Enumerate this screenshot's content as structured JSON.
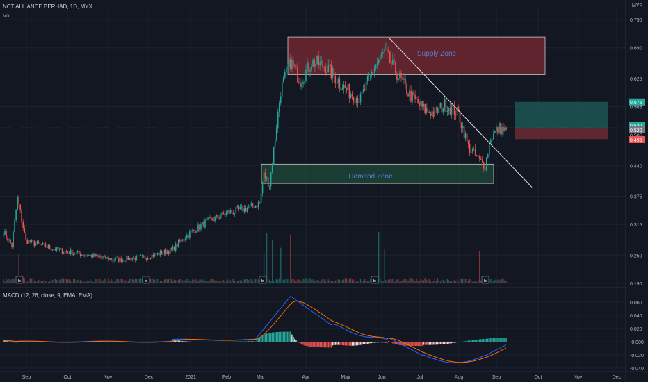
{
  "header": {
    "symbol_line": "NCT ALLIANCE BERHAD, 1D, MYX",
    "vol_label": "Vol",
    "currency": "MYR",
    "macd_label": "MACD (12, 26, close, 9, EMA, EMA)"
  },
  "colors": {
    "background": "#131722",
    "up": "#26a69a",
    "down": "#ef5350",
    "macd_line": "#2962ff",
    "signal_line": "#ff6d00",
    "supply_zone": "#7a2a33",
    "demand_zone": "#1f4a3a",
    "text": "#b2b5be"
  },
  "annotations": {
    "supply_zone": "Supply Zone",
    "demand_zone": "Demand Zone",
    "earnings_marker": "E"
  },
  "price_badges": [
    {
      "value": "0.575",
      "color": "#26a69a"
    },
    {
      "value": "0.520",
      "color": "#26a69a"
    },
    {
      "value": "0.520",
      "color": "#787b86"
    },
    {
      "value": "0.495",
      "color": "#ef5350"
    }
  ],
  "chart_data": [
    {
      "type": "candlestick",
      "title": "NCT ALLIANCE BERHAD, 1D, MYX",
      "y_ticks": [
        "0.750",
        "0.690",
        "0.625",
        "0.565",
        "0.505",
        "0.440",
        "0.375",
        "0.315",
        "0.250",
        "0.190"
      ],
      "ylim": [
        0.19,
        0.76
      ],
      "x_ticks": [
        "Sep",
        "Oct",
        "Nov",
        "Dec",
        "2021",
        "Feb",
        "Mar",
        "Apr",
        "May",
        "Jun",
        "Jul",
        "Aug",
        "Sep",
        "Oct",
        "Nov",
        "Dec"
      ],
      "anchors": [
        {
          "t": 0,
          "p": 0.3
        },
        {
          "t": 6,
          "p": 0.27
        },
        {
          "t": 10,
          "p": 0.37
        },
        {
          "t": 16,
          "p": 0.28
        },
        {
          "t": 40,
          "p": 0.26
        },
        {
          "t": 60,
          "p": 0.25
        },
        {
          "t": 80,
          "p": 0.24
        },
        {
          "t": 100,
          "p": 0.245
        },
        {
          "t": 120,
          "p": 0.26
        },
        {
          "t": 130,
          "p": 0.29
        },
        {
          "t": 145,
          "p": 0.32
        },
        {
          "t": 160,
          "p": 0.34
        },
        {
          "t": 175,
          "p": 0.35
        },
        {
          "t": 183,
          "p": 0.36
        },
        {
          "t": 186,
          "p": 0.42
        },
        {
          "t": 190,
          "p": 0.4
        },
        {
          "t": 198,
          "p": 0.6
        },
        {
          "t": 205,
          "p": 0.66
        },
        {
          "t": 212,
          "p": 0.62
        },
        {
          "t": 220,
          "p": 0.66
        },
        {
          "t": 230,
          "p": 0.65
        },
        {
          "t": 245,
          "p": 0.6
        },
        {
          "t": 255,
          "p": 0.58
        },
        {
          "t": 265,
          "p": 0.65
        },
        {
          "t": 272,
          "p": 0.68
        },
        {
          "t": 280,
          "p": 0.64
        },
        {
          "t": 290,
          "p": 0.59
        },
        {
          "t": 300,
          "p": 0.56
        },
        {
          "t": 308,
          "p": 0.55
        },
        {
          "t": 315,
          "p": 0.57
        },
        {
          "t": 325,
          "p": 0.55
        },
        {
          "t": 332,
          "p": 0.48
        },
        {
          "t": 340,
          "p": 0.45
        },
        {
          "t": 344,
          "p": 0.44
        },
        {
          "t": 348,
          "p": 0.5
        },
        {
          "t": 354,
          "p": 0.52
        },
        {
          "t": 360,
          "p": 0.51
        }
      ],
      "candle_count": 360,
      "zones": [
        {
          "label": "Supply Zone",
          "price_low": 0.635,
          "price_high": 0.71
        },
        {
          "label": "Demand Zone",
          "price_low": 0.405,
          "price_high": 0.44
        }
      ],
      "trendline": {
        "from": [
          0.71,
          "Jun"
        ],
        "to": [
          0.395,
          "Sep"
        ]
      },
      "earnings_markers": [
        "Sep",
        "Dec",
        "Mar",
        "Jun",
        "Aug"
      ]
    },
    {
      "type": "line",
      "title": "MACD (12, 26, close, 9, EMA, EMA)",
      "y_ticks": [
        "0.060",
        "0.040",
        "0.020",
        "-0.000",
        "-0.020",
        "-0.040"
      ],
      "ylim": [
        -0.04,
        0.07
      ],
      "series": [
        {
          "name": "MACD",
          "color": "#2962ff"
        },
        {
          "name": "Signal",
          "color": "#ff6d00"
        }
      ]
    }
  ]
}
